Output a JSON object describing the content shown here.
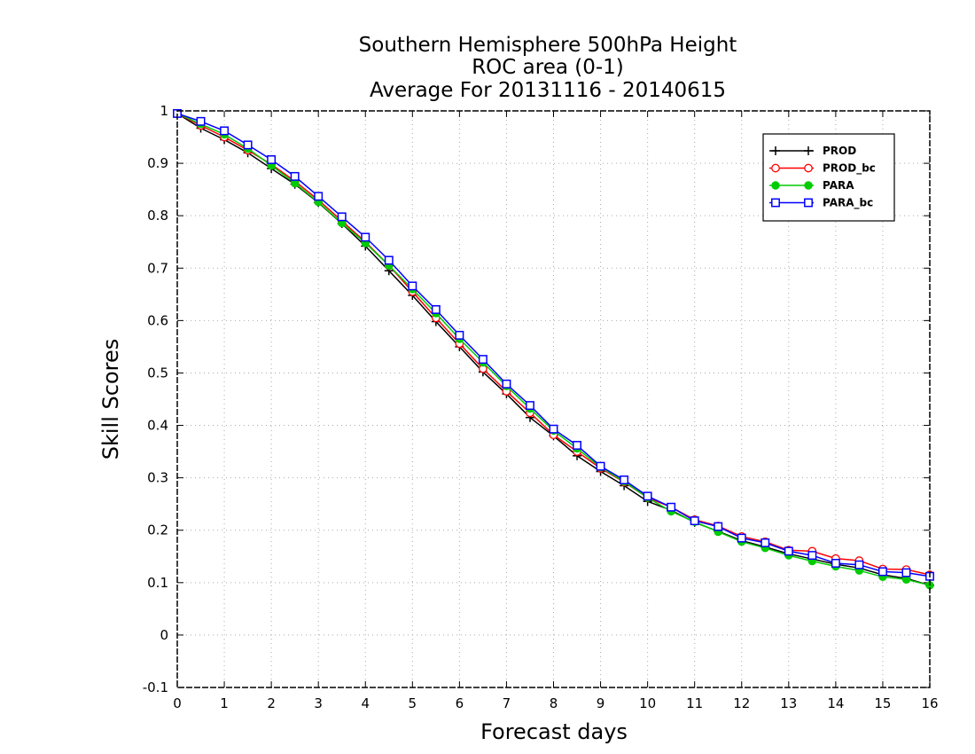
{
  "chart_data": {
    "type": "line",
    "title_lines": [
      "Southern Hemisphere 500hPa Height",
      "ROC area (0-1)",
      "Average For 20131116 - 20140615"
    ],
    "xlabel": "Forecast days",
    "ylabel": "Skill Scores",
    "xlim": [
      0,
      16
    ],
    "ylim": [
      -0.1,
      1
    ],
    "x_ticks": [
      0,
      1,
      2,
      3,
      4,
      5,
      6,
      7,
      8,
      9,
      10,
      11,
      12,
      13,
      14,
      15,
      16
    ],
    "y_ticks": [
      -0.1,
      0,
      0.1,
      0.2,
      0.3,
      0.4,
      0.5,
      0.6,
      0.7,
      0.8,
      0.9,
      1
    ],
    "y_tick_labels": [
      "-0.1",
      "0",
      "0.1",
      "0.2",
      "0.3",
      "0.4",
      "0.5",
      "0.6",
      "0.7",
      "0.8",
      "0.9",
      "1"
    ],
    "grid": true,
    "legend_position": "top-right",
    "x": [
      0,
      0.5,
      1,
      1.5,
      2,
      2.5,
      3,
      3.5,
      4,
      4.5,
      5,
      5.5,
      6,
      6.5,
      7,
      7.5,
      8,
      8.5,
      9,
      9.5,
      10,
      10.5,
      11,
      11.5,
      12,
      12.5,
      13,
      13.5,
      14,
      14.5,
      15,
      15.5,
      16
    ],
    "series": [
      {
        "name": "PROD",
        "color": "#000000",
        "marker": "plus",
        "values": [
          0.995,
          0.967,
          0.945,
          0.92,
          0.89,
          0.86,
          0.825,
          0.785,
          0.742,
          0.695,
          0.648,
          0.598,
          0.55,
          0.502,
          0.46,
          0.415,
          0.38,
          0.342,
          0.312,
          0.285,
          0.255,
          0.238,
          0.215,
          0.198,
          0.18,
          0.168,
          0.155,
          0.145,
          0.135,
          0.128,
          0.115,
          0.108,
          0.095
        ]
      },
      {
        "name": "PROD_bc",
        "color": "#ff0000",
        "marker": "open-circle",
        "values": [
          0.995,
          0.972,
          0.95,
          0.925,
          0.898,
          0.866,
          0.83,
          0.79,
          0.75,
          0.705,
          0.655,
          0.605,
          0.556,
          0.508,
          0.465,
          0.424,
          0.382,
          0.35,
          0.318,
          0.292,
          0.262,
          0.244,
          0.22,
          0.208,
          0.188,
          0.178,
          0.162,
          0.16,
          0.146,
          0.142,
          0.126,
          0.125,
          0.115
        ]
      },
      {
        "name": "PARA",
        "color": "#00cc00",
        "marker": "filled-circle",
        "values": [
          0.995,
          0.975,
          0.955,
          0.928,
          0.896,
          0.862,
          0.826,
          0.786,
          0.748,
          0.705,
          0.66,
          0.614,
          0.565,
          0.52,
          0.475,
          0.432,
          0.39,
          0.356,
          0.32,
          0.293,
          0.262,
          0.236,
          0.216,
          0.197,
          0.178,
          0.166,
          0.152,
          0.141,
          0.131,
          0.123,
          0.111,
          0.106,
          0.095
        ]
      },
      {
        "name": "PARA_bc",
        "color": "#0000ff",
        "marker": "open-square",
        "values": [
          0.995,
          0.98,
          0.962,
          0.935,
          0.907,
          0.875,
          0.837,
          0.798,
          0.759,
          0.715,
          0.666,
          0.621,
          0.572,
          0.526,
          0.479,
          0.438,
          0.393,
          0.362,
          0.322,
          0.296,
          0.265,
          0.244,
          0.218,
          0.207,
          0.185,
          0.176,
          0.16,
          0.152,
          0.137,
          0.134,
          0.121,
          0.119,
          0.112
        ]
      }
    ]
  }
}
